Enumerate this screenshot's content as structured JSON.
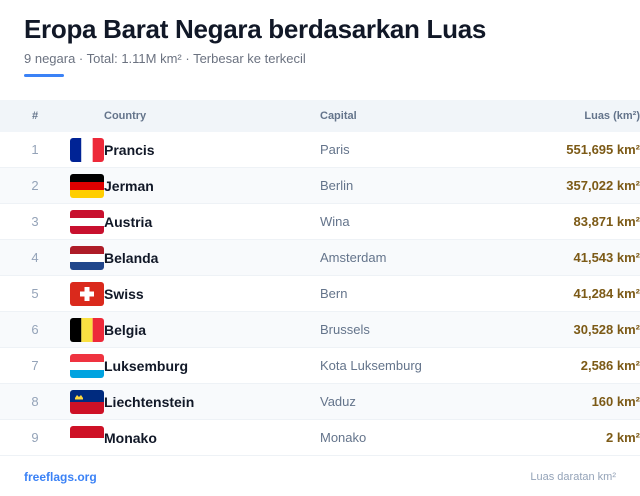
{
  "header": {
    "title": "Eropa Barat Negara berdasarkan Luas",
    "subtitle": "9 negara · Total: 1.11M km² · Terbesar ke terkecil"
  },
  "table": {
    "columns": {
      "num": "#",
      "country": "Country",
      "capital": "Capital",
      "area": "Luas (km²)"
    },
    "rows": [
      {
        "num": "1",
        "country": "Prancis",
        "capital": "Paris",
        "area": "551,695 km²",
        "flag": "flag-france"
      },
      {
        "num": "2",
        "country": "Jerman",
        "capital": "Berlin",
        "area": "357,022 km²",
        "flag": "flag-germany"
      },
      {
        "num": "3",
        "country": "Austria",
        "capital": "Wina",
        "area": "83,871 km²",
        "flag": "flag-austria"
      },
      {
        "num": "4",
        "country": "Belanda",
        "capital": "Amsterdam",
        "area": "41,543 km²",
        "flag": "flag-netherlands"
      },
      {
        "num": "5",
        "country": "Swiss",
        "capital": "Bern",
        "area": "41,284 km²",
        "flag": "flag-switzerland"
      },
      {
        "num": "6",
        "country": "Belgia",
        "capital": "Brussels",
        "area": "30,528 km²",
        "flag": "flag-belgium"
      },
      {
        "num": "7",
        "country": "Luksemburg",
        "capital": "Kota Luksemburg",
        "area": "2,586 km²",
        "flag": "flag-luxembourg"
      },
      {
        "num": "8",
        "country": "Liechtenstein",
        "capital": "Vaduz",
        "area": "160 km²",
        "flag": "flag-liechtenstein"
      },
      {
        "num": "9",
        "country": "Monako",
        "capital": "Monako",
        "area": "2 km²",
        "flag": "flag-monaco"
      }
    ]
  },
  "footer": {
    "link": "freeflags.org",
    "note": "Luas daratan km²"
  },
  "colors": {
    "accent": "#3b82f6",
    "area_text": "#7c5a16",
    "header_bg": "#f1f5f9",
    "alt_row_bg": "#f8fafc"
  }
}
